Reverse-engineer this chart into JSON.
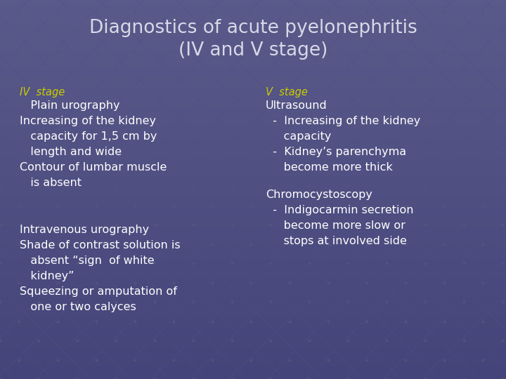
{
  "title_line1": "Diagnostics of acute pyelonephritis",
  "title_line2": "(IV and V stage)",
  "title_color": "#d8d8e8",
  "title_fontsize": 19,
  "bg_color": "#5a5a8a",
  "grid_line_color": "#4a4a78",
  "grid_dot_color": "#4a4a80",
  "label_color_yellow": "#cccc00",
  "text_color_white": "#ffffff",
  "iv_stage_label": "IV  stage",
  "v_stage_label": "V  stage",
  "iv_col1_lines": [
    "   Plain urography",
    "Increasing of the kidney",
    "   capacity for 1,5 cm by",
    "   length and wide",
    "Contour of lumbar muscle",
    "   is absent"
  ],
  "iv_col1_lines2": [
    "Intravenous urography",
    "Shade of contrast solution is",
    "   absent “sign  of white",
    "   kidney”",
    "Squeezing or amputation of",
    "   one or two calyces"
  ],
  "v_col_lines": [
    "Ultrasound",
    "  -  Increasing of the kidney",
    "     capacity",
    "  -  Kidney’s parenchyma",
    "     become more thick"
  ],
  "v_col_lines2": [
    "Chromocystoscopy",
    "  -  Indigocarmin secretion",
    "     become more slow or",
    "     stops at involved side"
  ],
  "font_size_body": 11.5,
  "font_size_label": 10.5
}
